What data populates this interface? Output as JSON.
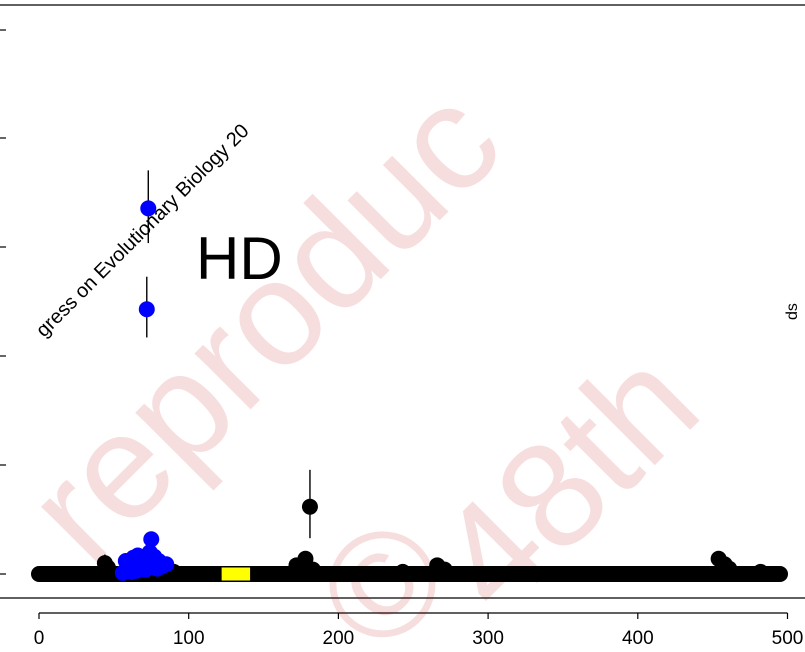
{
  "chart_data": {
    "type": "scatter",
    "title": "",
    "xlabel": "",
    "ylabel": "",
    "xlim": [
      0,
      500
    ],
    "x_ticks": [
      "0",
      "100",
      "200",
      "300",
      "400",
      "500"
    ],
    "annotation": "HD",
    "watermark_text": {
      "left": "gress on Evolutionary Biology 20",
      "center": "reproduc",
      "right": "48th",
      "bottom": "©",
      "edge": "ds"
    },
    "colors": {
      "black_points": "#000000",
      "blue_points": "#0000ff",
      "highlight_bar": "#ffff00",
      "watermark": "#c00000"
    },
    "series": [
      {
        "color_key": "black",
        "points": [
          {
            "x": 181,
            "y": 0.62,
            "err": [
              0.33,
              0.96
            ]
          },
          {
            "x": 178,
            "y": 0.14
          },
          {
            "x": 172,
            "y": 0.08
          },
          {
            "x": 183,
            "y": 0.04
          },
          {
            "x": 44,
            "y": 0.1,
            "err": [
              0.03,
              0.18
            ]
          },
          {
            "x": 46,
            "y": 0.06
          },
          {
            "x": 62,
            "y": 0.05
          },
          {
            "x": 85,
            "y": 0.03
          },
          {
            "x": 90,
            "y": 0.02
          },
          {
            "x": 266,
            "y": 0.08
          },
          {
            "x": 268,
            "y": 0.05
          },
          {
            "x": 271,
            "y": 0.04
          },
          {
            "x": 243,
            "y": 0.02
          },
          {
            "x": 454,
            "y": 0.14
          },
          {
            "x": 458,
            "y": 0.09
          },
          {
            "x": 461,
            "y": 0.05
          },
          {
            "x": 482,
            "y": 0.02
          }
        ]
      },
      {
        "color_key": "blue",
        "points": [
          {
            "x": 73,
            "y": 3.37,
            "err": [
              3.05,
              3.72
            ]
          },
          {
            "x": 72,
            "y": 2.44,
            "err": [
              2.18,
              2.74
            ]
          },
          {
            "x": 75,
            "y": 0.32
          },
          {
            "x": 63,
            "y": 0.15
          },
          {
            "x": 66,
            "y": 0.17
          },
          {
            "x": 70,
            "y": 0.13
          },
          {
            "x": 74,
            "y": 0.2
          },
          {
            "x": 77,
            "y": 0.16
          },
          {
            "x": 80,
            "y": 0.12
          },
          {
            "x": 58,
            "y": 0.12
          },
          {
            "x": 60,
            "y": 0.08
          },
          {
            "x": 68,
            "y": 0.06
          },
          {
            "x": 79,
            "y": 0.05
          },
          {
            "x": 56,
            "y": 0.01
          },
          {
            "x": 62,
            "y": 0.02
          },
          {
            "x": 71,
            "y": 0.04
          },
          {
            "x": 82,
            "y": 0.07
          },
          {
            "x": 85,
            "y": 0.09
          },
          {
            "x": 65,
            "y": 0.03
          }
        ]
      }
    ],
    "baseline": {
      "y": 0,
      "x_range": [
        0,
        495
      ]
    },
    "highlight_region": {
      "x_range": [
        122,
        141
      ],
      "y_range": [
        -0.06,
        0.06
      ]
    }
  }
}
